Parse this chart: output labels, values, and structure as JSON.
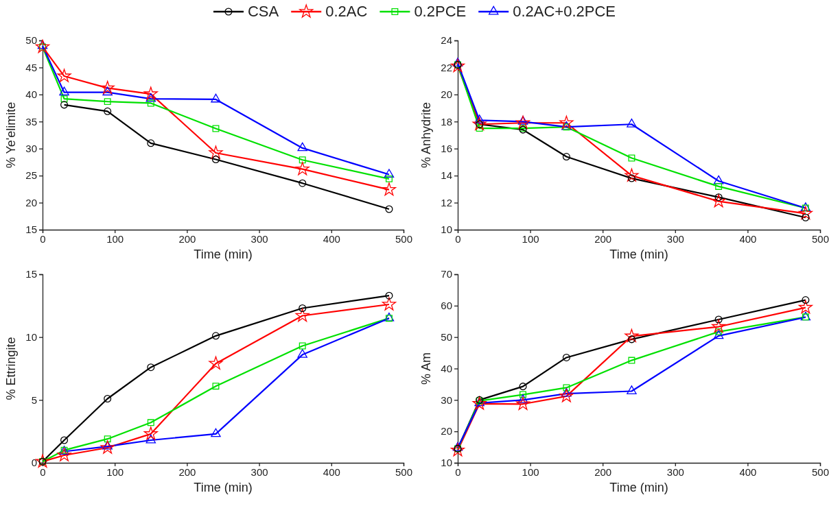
{
  "chart_data": [
    {
      "type": "line",
      "xlabel": "Time (min)",
      "ylabel": "% Ye'elimite",
      "x": [
        0,
        30,
        90,
        150,
        240,
        360,
        480
      ],
      "xlim": [
        0,
        500
      ],
      "xticks": [
        0,
        100,
        200,
        300,
        400,
        500
      ],
      "ylim": [
        15,
        50
      ],
      "yticks": [
        15,
        20,
        25,
        30,
        35,
        40,
        45,
        50
      ],
      "legend": "top",
      "grid": false,
      "line_style": "solid",
      "series": [
        {
          "name": "CSA",
          "color": "#000000",
          "marker": "circle",
          "values": [
            null,
            38.1,
            36.9,
            31.0,
            28.0,
            23.6,
            18.8
          ]
        },
        {
          "name": "0.2AC",
          "color": "#ff0000",
          "marker": "star",
          "values": [
            48.8,
            43.4,
            41.2,
            40.1,
            29.2,
            26.2,
            22.4
          ]
        },
        {
          "name": "0.2PCE",
          "color": "#00e000",
          "marker": "square",
          "values": [
            48.8,
            39.2,
            38.7,
            38.4,
            33.7,
            27.9,
            24.4
          ]
        },
        {
          "name": "0.2AC+0.2PCE",
          "color": "#0000ff",
          "marker": "triangle",
          "values": [
            49.0,
            40.4,
            40.4,
            39.2,
            39.1,
            30.1,
            25.2
          ]
        }
      ]
    },
    {
      "type": "line",
      "xlabel": "Time (min)",
      "ylabel": "% Anhydrite",
      "x": [
        0,
        30,
        90,
        150,
        240,
        360,
        480
      ],
      "xlim": [
        0,
        500
      ],
      "xticks": [
        0,
        100,
        200,
        300,
        400,
        500
      ],
      "ylim": [
        10,
        24
      ],
      "yticks": [
        10,
        12,
        14,
        16,
        18,
        20,
        22,
        24
      ],
      "grid": false,
      "line_style": "solid",
      "series": [
        {
          "color": "#000000",
          "marker": "circle",
          "values": [
            22.2,
            17.8,
            17.4,
            15.4,
            13.8,
            12.4,
            10.9
          ]
        },
        {
          "color": "#ff0000",
          "marker": "star",
          "values": [
            22.1,
            17.8,
            17.9,
            17.9,
            14.0,
            12.1,
            11.2
          ]
        },
        {
          "color": "#00e000",
          "marker": "square",
          "values": [
            22.2,
            17.5,
            17.5,
            17.6,
            15.3,
            13.2,
            11.6
          ]
        },
        {
          "color": "#0000ff",
          "marker": "triangle",
          "values": [
            22.3,
            18.1,
            18.0,
            17.6,
            17.8,
            13.6,
            11.6
          ]
        }
      ]
    },
    {
      "type": "line",
      "xlabel": "Time (min)",
      "ylabel": "% Ettringite",
      "x": [
        0,
        30,
        90,
        150,
        240,
        360,
        480
      ],
      "xlim": [
        0,
        500
      ],
      "xticks": [
        0,
        100,
        200,
        300,
        400,
        500
      ],
      "ylim": [
        0,
        15
      ],
      "yticks": [
        0,
        5,
        10,
        15
      ],
      "grid": false,
      "line_style": "solid",
      "series": [
        {
          "color": "#000000",
          "marker": "circle",
          "values": [
            0.1,
            1.8,
            5.1,
            7.6,
            10.1,
            12.3,
            13.3
          ]
        },
        {
          "color": "#ff0000",
          "marker": "star",
          "values": [
            0.1,
            0.6,
            1.2,
            2.3,
            7.9,
            11.7,
            12.6
          ]
        },
        {
          "color": "#00e000",
          "marker": "square",
          "values": [
            0.1,
            1.0,
            1.9,
            3.2,
            6.1,
            9.3,
            11.5
          ]
        },
        {
          "color": "#0000ff",
          "marker": "triangle",
          "values": [
            null,
            0.9,
            1.3,
            1.8,
            2.3,
            8.6,
            11.5
          ]
        }
      ]
    },
    {
      "type": "line",
      "xlabel": "Time (min)",
      "ylabel": "% Am",
      "x": [
        0,
        30,
        90,
        150,
        240,
        360,
        480
      ],
      "xlim": [
        0,
        500
      ],
      "xticks": [
        0,
        100,
        200,
        300,
        400,
        500
      ],
      "ylim": [
        10,
        70
      ],
      "yticks": [
        10,
        20,
        30,
        40,
        50,
        60,
        70
      ],
      "grid": false,
      "line_style": "solid",
      "series": [
        {
          "color": "#000000",
          "marker": "circle",
          "values": [
            14.5,
            30.0,
            34.3,
            43.5,
            49.3,
            55.6,
            61.8
          ]
        },
        {
          "color": "#ff0000",
          "marker": "star",
          "values": [
            14.0,
            28.8,
            28.7,
            31.2,
            50.3,
            53.3,
            59.4
          ]
        },
        {
          "color": "#00e000",
          "marker": "square",
          "values": [
            14.5,
            29.7,
            31.7,
            33.9,
            42.6,
            51.7,
            56.4
          ]
        },
        {
          "color": "#0000ff",
          "marker": "triangle",
          "values": [
            14.8,
            29.0,
            30.0,
            32.0,
            32.8,
            50.4,
            56.3
          ]
        }
      ]
    }
  ]
}
